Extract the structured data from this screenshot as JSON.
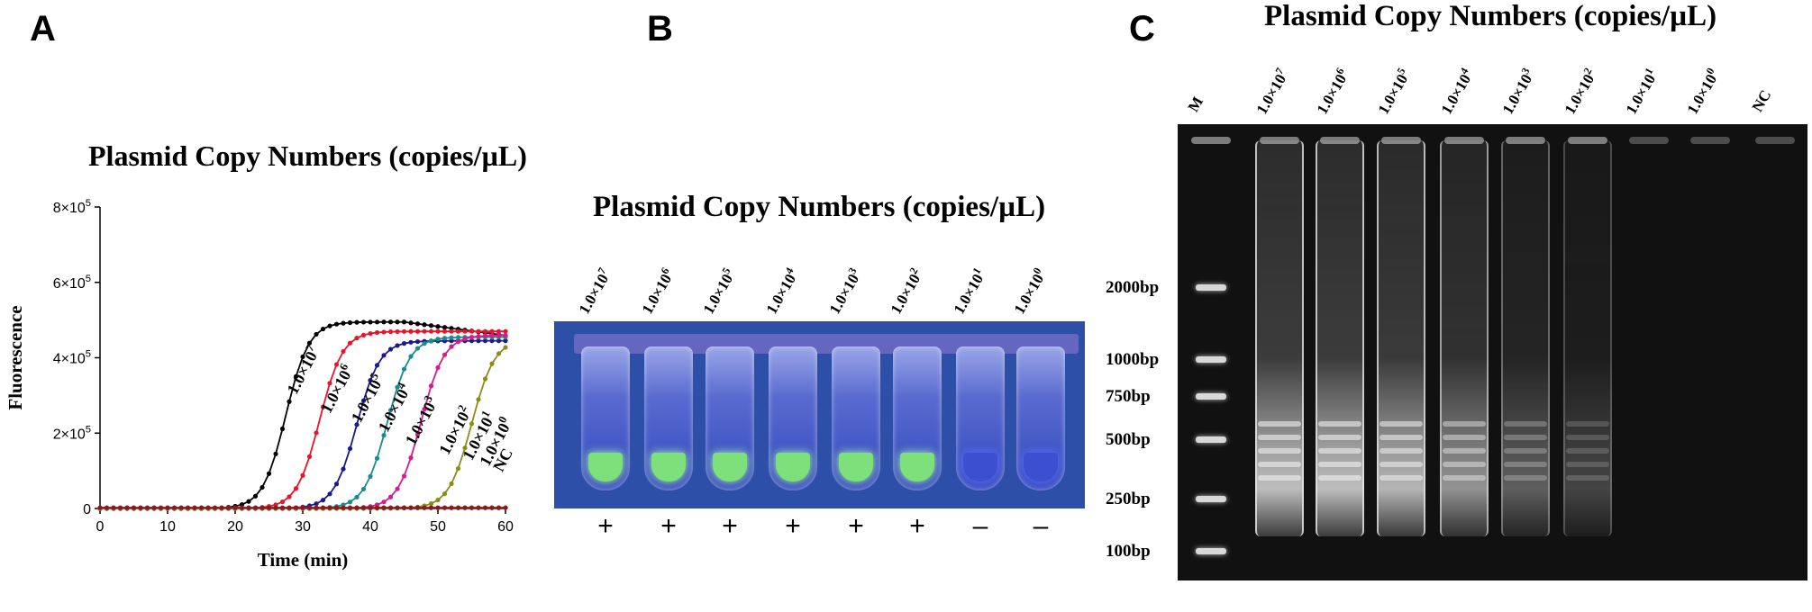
{
  "panels": {
    "a": "A",
    "b": "B",
    "c": "C"
  },
  "panel_a": {
    "title": "Plasmid Copy Numbers (copies/µL)"
  },
  "panel_b": {
    "title": "Plasmid Copy Numbers (copies/µL)",
    "tube_labels": [
      {
        "mantissa": "1.0×10",
        "exp": "7"
      },
      {
        "mantissa": "1.0×10",
        "exp": "6"
      },
      {
        "mantissa": "1.0×10",
        "exp": "5"
      },
      {
        "mantissa": "1.0×10",
        "exp": "4"
      },
      {
        "mantissa": "1.0×10",
        "exp": "3"
      },
      {
        "mantissa": "1.0×10",
        "exp": "2"
      },
      {
        "mantissa": "1.0×10",
        "exp": "1"
      },
      {
        "mantissa": "1.0×10",
        "exp": "0"
      }
    ],
    "results": [
      "+",
      "+",
      "+",
      "+",
      "+",
      "+",
      "–",
      "–"
    ],
    "colors": {
      "positive": "#7ee07a",
      "negative": "#3b4fd0",
      "background": "#2d4fa7"
    }
  },
  "panel_c": {
    "title": "Plasmid Copy Numbers (copies/µL)",
    "lane_labels": [
      {
        "mantissa": "M",
        "exp": ""
      },
      {
        "mantissa": "1.0×10",
        "exp": "7"
      },
      {
        "mantissa": "1.0×10",
        "exp": "6"
      },
      {
        "mantissa": "1.0×10",
        "exp": "5"
      },
      {
        "mantissa": "1.0×10",
        "exp": "4"
      },
      {
        "mantissa": "1.0×10",
        "exp": "3"
      },
      {
        "mantissa": "1.0×10",
        "exp": "2"
      },
      {
        "mantissa": "1.0×10",
        "exp": "1"
      },
      {
        "mantissa": "1.0×10",
        "exp": "0"
      },
      {
        "mantissa": "NC",
        "exp": ""
      }
    ],
    "ladder": [
      "2000bp",
      "1000bp",
      "750bp",
      "500bp",
      "250bp",
      "100bp"
    ],
    "lane_intensity": [
      1.0,
      1.0,
      0.95,
      0.75,
      0.45,
      0.3,
      0.0,
      0.0,
      0.0
    ]
  },
  "chart_data": {
    "type": "line",
    "title": "Plasmid Copy Numbers (copies/µL)",
    "xlabel": "Time (min)",
    "ylabel": "Fluorescence",
    "xlim": [
      0,
      60
    ],
    "ylim": [
      0,
      800000
    ],
    "xticks": [
      0,
      10,
      20,
      30,
      40,
      50,
      60
    ],
    "yticks": [
      {
        "value": 0,
        "mantissa": "0",
        "exp": ""
      },
      {
        "value": 200000,
        "mantissa": "2×10",
        "exp": "5"
      },
      {
        "value": 400000,
        "mantissa": "4×10",
        "exp": "5"
      },
      {
        "value": 600000,
        "mantissa": "6×10",
        "exp": "5"
      },
      {
        "value": 800000,
        "mantissa": "8×10",
        "exp": "5"
      }
    ],
    "series": [
      {
        "name": "1.0×10^7",
        "mantissa": "1.0×10",
        "exp": "7",
        "color": "#000000",
        "midpoint": 27.5,
        "max": 495000,
        "label_at": [
          29,
          300000
        ]
      },
      {
        "name": "1.0×10^6",
        "mantissa": "1.0×10",
        "exp": "6",
        "color": "#e8152a",
        "midpoint": 32.5,
        "max": 470000,
        "label_at": [
          34,
          250000
        ]
      },
      {
        "name": "1.0×10^5",
        "mantissa": "1.0×10",
        "exp": "5",
        "color": "#1a1a8c",
        "midpoint": 38,
        "max": 445000,
        "label_at": [
          38.5,
          225000
        ]
      },
      {
        "name": "1.0×10^4",
        "mantissa": "1.0×10",
        "exp": "4",
        "color": "#1a8c8c",
        "midpoint": 42.5,
        "max": 455000,
        "label_at": [
          42.5,
          200000
        ]
      },
      {
        "name": "1.0×10^3",
        "mantissa": "1.0×10",
        "exp": "3",
        "color": "#d81b8c",
        "midpoint": 47.5,
        "max": 460000,
        "label_at": [
          46.5,
          165000
        ]
      },
      {
        "name": "1.0×10^2",
        "mantissa": "1.0×10",
        "exp": "2",
        "color": "#8c8c1a",
        "midpoint": 55,
        "max": 450000,
        "label_at": [
          51.5,
          140000
        ]
      },
      {
        "name": "1.0×10^1",
        "mantissa": "1.0×10",
        "exp": "1",
        "color": "#d4d41a",
        "midpoint": 0,
        "max": 0,
        "label_at": [
          55,
          125000
        ]
      },
      {
        "name": "1.0×10^0",
        "mantissa": "1.0×10",
        "exp": "0",
        "color": "#6a2a8c",
        "midpoint": 0,
        "max": 0,
        "label_at": [
          57.5,
          110000
        ]
      },
      {
        "name": "NC",
        "mantissa": "NC",
        "exp": "",
        "color": "#8c1a1a",
        "midpoint": 0,
        "max": 0,
        "label_at": [
          59.5,
          95000
        ]
      }
    ]
  }
}
